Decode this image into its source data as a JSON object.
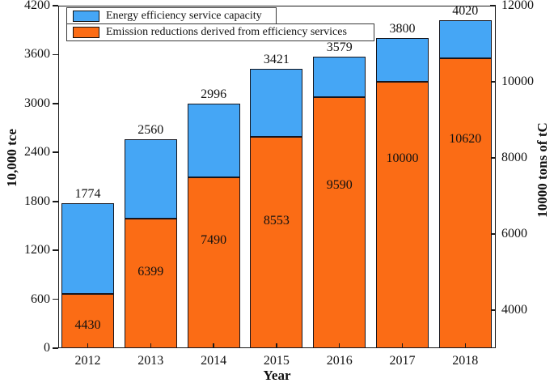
{
  "chart_data": {
    "type": "bar",
    "subtype": "stacked-dual-axis",
    "title": "",
    "categories": [
      "2012",
      "2013",
      "2014",
      "2015",
      "2016",
      "2017",
      "2018"
    ],
    "series": [
      {
        "name": "Energy efficiency service capacity",
        "axis": "left",
        "color": "#45a6f5",
        "values": [
          1774,
          2560,
          2996,
          3421,
          3579,
          3800,
          4020
        ]
      },
      {
        "name": "Emission reductions derived from efficiency services",
        "axis": "right",
        "color": "#fb6c15",
        "values": [
          4430,
          6399,
          7490,
          8553,
          9590,
          10000,
          10620
        ]
      }
    ],
    "xlabel": "Year",
    "left_axis": {
      "label": "10,000 tce",
      "min": 0,
      "max": 4200,
      "ticks": [
        0,
        600,
        1200,
        1800,
        2400,
        3000,
        3600,
        4200
      ]
    },
    "right_axis": {
      "label": "10000 tons of tC",
      "min": 3000,
      "max": 12000,
      "ticks": [
        4000,
        6000,
        8000,
        10000,
        12000
      ]
    },
    "legend": {
      "position": "top-left",
      "border": true
    },
    "grid": false,
    "bar_value_labels": true
  }
}
